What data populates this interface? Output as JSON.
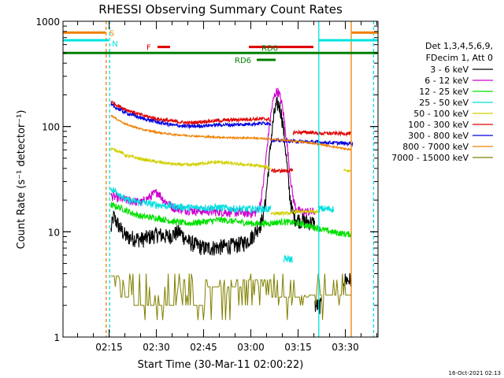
{
  "chart_data": {
    "type": "line",
    "title": "RHESSI Observing Summary Count Rates",
    "xlabel": "Start Time (30-Mar-11 02:00:22)",
    "ylabel": "Count Rate (s⁻¹ detector⁻¹)",
    "yscale": "log",
    "xlim_minutes": [
      0,
      100
    ],
    "ylim": [
      1,
      1000
    ],
    "x_ticks": [
      "02:15",
      "02:30",
      "02:45",
      "03:00",
      "03:15",
      "03:30"
    ],
    "y_ticks": [
      "1",
      "10",
      "100",
      "1000"
    ],
    "timestamp": "16-Oct-2021 02:13",
    "legend_header": [
      "Det 1,3,4,5,6,9,",
      "FDecim 1, Att 0"
    ],
    "flags": {
      "S_label": "S",
      "N_label": "N",
      "F_label": "F",
      "RD0_label": "RD0",
      "RD6_label": "RD6"
    },
    "series": [
      {
        "name": "3 - 6 keV",
        "color": "#000000"
      },
      {
        "name": "6 - 12 keV",
        "color": "#d000d0"
      },
      {
        "name": "12 - 25 keV",
        "color": "#00e000"
      },
      {
        "name": "25 - 50 keV",
        "color": "#00e0e0"
      },
      {
        "name": "50 - 100 keV",
        "color": "#d0d000"
      },
      {
        "name": "100 - 300 keV",
        "color": "#e00000"
      },
      {
        "name": "300 - 800 keV",
        "color": "#0000e0"
      },
      {
        "name": "800 - 7000 keV",
        "color": "#f08000"
      },
      {
        "name": "7000 - 15000 keV",
        "color": "#808000"
      }
    ]
  }
}
